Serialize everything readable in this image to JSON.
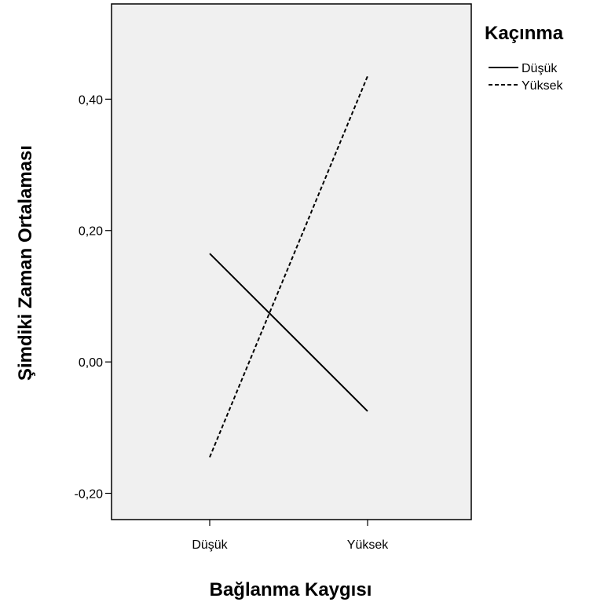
{
  "chart_data": {
    "type": "line",
    "categories": [
      "Düşük",
      "Yüksek"
    ],
    "series": [
      {
        "name": "Düşük",
        "values": [
          0.165,
          -0.075
        ],
        "line_style": "solid"
      },
      {
        "name": "Yüksek",
        "values": [
          -0.145,
          0.435
        ],
        "line_style": "dashed"
      }
    ],
    "xlabel": "Bağlanma Kaygısı",
    "ylabel": "Şimdiki Zaman Ortalaması",
    "ylim": [
      -0.24,
      0.545
    ],
    "yticks": [
      -0.2,
      0.0,
      0.2,
      0.4
    ],
    "ytick_labels": [
      "-0,20",
      "0,00",
      "0,20",
      "0,40"
    ],
    "grid": false,
    "legend": {
      "title": "Kaçınma",
      "placement": "top-right-outside"
    },
    "colors": {
      "plot_background": "#f0f0f0",
      "line": "#000000",
      "page_background": "#ffffff"
    }
  }
}
